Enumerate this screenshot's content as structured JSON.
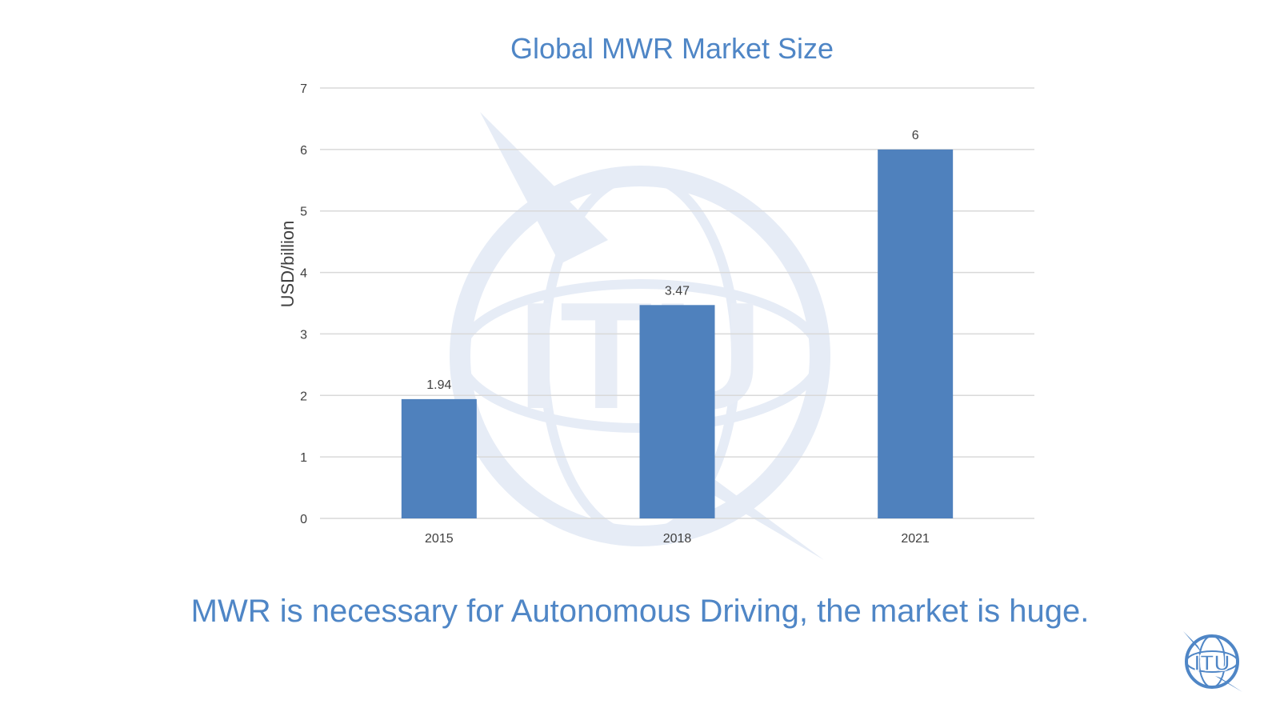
{
  "slide": {
    "caption": "MWR is necessary for Autonomous Driving, the market is huge.",
    "logo_text": "ITU",
    "watermark_text": "ITU"
  },
  "colors": {
    "accent": "#4f86c6",
    "bar": "#4f81bd",
    "grid": "#d9d9d9",
    "tick_text": "#404040",
    "watermark": "#e8edf6"
  },
  "chart_data": {
    "type": "bar",
    "title": "Global MWR Market Size",
    "xlabel": "",
    "ylabel": "USD/billion",
    "categories": [
      "2015",
      "2018",
      "2021"
    ],
    "values": [
      1.94,
      3.47,
      6
    ],
    "value_labels": [
      "1.94",
      "3.47",
      "6"
    ],
    "ylim": [
      0,
      7
    ],
    "yticks": [
      "0",
      "1",
      "2",
      "3",
      "4",
      "5",
      "6",
      "7"
    ],
    "grid": true,
    "legend": "none"
  }
}
